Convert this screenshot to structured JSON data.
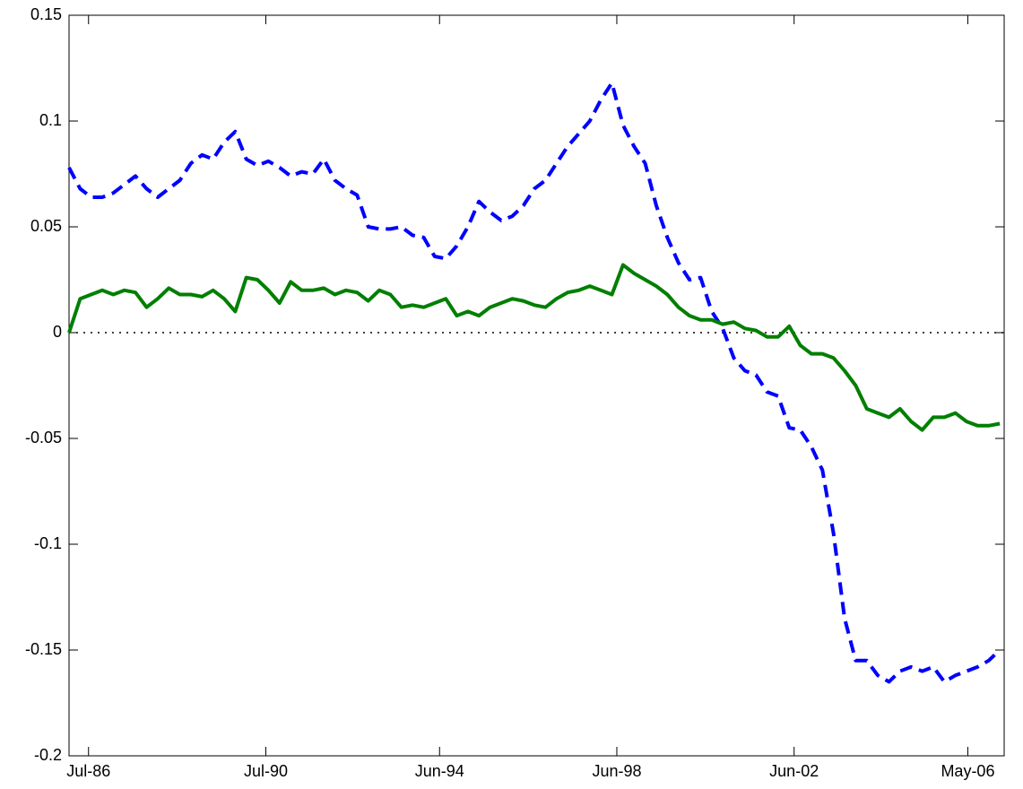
{
  "chart_data": {
    "type": "line",
    "x": [
      1986.1,
      1986.35,
      1986.6,
      1986.85,
      1987.1,
      1987.35,
      1987.6,
      1987.85,
      1988.1,
      1988.35,
      1988.6,
      1988.85,
      1989.1,
      1989.35,
      1989.6,
      1989.85,
      1990.1,
      1990.35,
      1990.6,
      1990.85,
      1991.1,
      1991.35,
      1991.6,
      1991.85,
      1992.1,
      1992.35,
      1992.6,
      1992.85,
      1993.1,
      1993.35,
      1993.6,
      1993.85,
      1994.1,
      1994.35,
      1994.6,
      1994.85,
      1995.1,
      1995.35,
      1995.6,
      1995.85,
      1996.1,
      1996.35,
      1996.6,
      1996.85,
      1997.1,
      1997.35,
      1997.6,
      1997.85,
      1998.1,
      1998.35,
      1998.6,
      1998.85,
      1999.1,
      1999.35,
      1999.6,
      1999.85,
      2000.1,
      2000.35,
      2000.6,
      2000.85,
      2001.1,
      2001.35,
      2001.6,
      2001.85,
      2002.1,
      2002.35,
      2002.6,
      2002.85,
      2003.1,
      2003.35,
      2003.6,
      2003.85,
      2004.1,
      2004.35,
      2004.6,
      2004.85,
      2005.1,
      2005.35,
      2005.6,
      2005.85,
      2006.1,
      2006.35,
      2006.6,
      2006.85,
      2007.1
    ],
    "series": [
      {
        "color": "#0000ff",
        "dash": true,
        "values": [
          0.078,
          0.068,
          0.064,
          0.064,
          0.066,
          0.07,
          0.074,
          0.068,
          0.064,
          0.068,
          0.072,
          0.08,
          0.084,
          0.082,
          0.09,
          0.095,
          0.082,
          0.079,
          0.081,
          0.078,
          0.074,
          0.076,
          0.075,
          0.082,
          0.072,
          0.068,
          0.065,
          0.05,
          0.049,
          0.049,
          0.05,
          0.046,
          0.045,
          0.036,
          0.035,
          0.041,
          0.05,
          0.062,
          0.057,
          0.053,
          0.055,
          0.06,
          0.068,
          0.072,
          0.08,
          0.088,
          0.094,
          0.1,
          0.11,
          0.118,
          0.098,
          0.088,
          0.08,
          0.06,
          0.045,
          0.033,
          0.025,
          0.026,
          0.01,
          0.002,
          -0.012,
          -0.018,
          -0.02,
          -0.028,
          -0.03,
          -0.045,
          -0.046,
          -0.054,
          -0.065,
          -0.095,
          -0.135,
          -0.155,
          -0.155,
          -0.162,
          -0.165,
          -0.16,
          -0.158,
          -0.16,
          -0.158,
          -0.165,
          -0.162,
          -0.16,
          -0.158,
          -0.155,
          -0.15
        ]
      },
      {
        "color": "#007f00",
        "dash": false,
        "values": [
          0.0,
          0.016,
          0.018,
          0.02,
          0.018,
          0.02,
          0.019,
          0.012,
          0.016,
          0.021,
          0.018,
          0.018,
          0.017,
          0.02,
          0.016,
          0.01,
          0.026,
          0.025,
          0.02,
          0.014,
          0.024,
          0.02,
          0.02,
          0.021,
          0.018,
          0.02,
          0.019,
          0.015,
          0.02,
          0.018,
          0.012,
          0.013,
          0.012,
          0.014,
          0.016,
          0.008,
          0.01,
          0.008,
          0.012,
          0.014,
          0.016,
          0.015,
          0.013,
          0.012,
          0.016,
          0.019,
          0.02,
          0.022,
          0.02,
          0.018,
          0.032,
          0.028,
          0.025,
          0.022,
          0.018,
          0.012,
          0.008,
          0.006,
          0.006,
          0.004,
          0.005,
          0.002,
          0.001,
          -0.002,
          -0.002,
          0.003,
          -0.006,
          -0.01,
          -0.01,
          -0.012,
          -0.018,
          -0.025,
          -0.036,
          -0.038,
          -0.04,
          -0.036,
          -0.042,
          -0.046,
          -0.04,
          -0.04,
          -0.038,
          -0.042,
          -0.044,
          -0.044,
          -0.043
        ]
      }
    ],
    "xlim": [
      1986.1,
      2007.2
    ],
    "xticks": [
      {
        "value": 1986.54,
        "label": "Jul-86"
      },
      {
        "value": 1990.54,
        "label": "Jul-90"
      },
      {
        "value": 1994.46,
        "label": "Jun-94"
      },
      {
        "value": 1998.46,
        "label": "Jun-98"
      },
      {
        "value": 2002.46,
        "label": "Jun-02"
      },
      {
        "value": 2006.38,
        "label": "May-06"
      }
    ],
    "ylim": [
      -0.2,
      0.15
    ],
    "yticks": [
      -0.2,
      -0.15,
      -0.1,
      -0.05,
      0,
      0.05,
      0.1,
      0.15
    ],
    "grid": false
  }
}
